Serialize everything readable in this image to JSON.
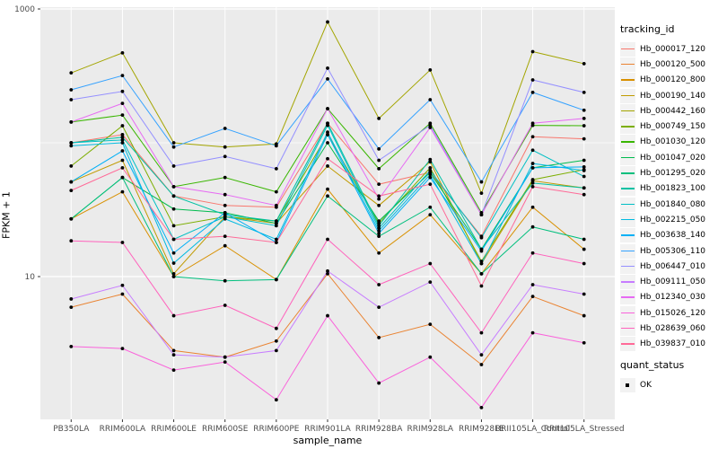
{
  "figure": {
    "x_axis_title": "sample_name",
    "y_axis_title": "FPKM + 1",
    "colors": {
      "panel_bg": "#EBEBEB",
      "grid": "#FFFFFF",
      "tick_text": "#4D4D4D",
      "tick_mark": "#333333",
      "point": "#000000",
      "legend_key_bg": "#F2F2F2"
    },
    "legend_tracking_title": "tracking_id",
    "legend_quant_title": "quant_status",
    "legend_quant_items": [
      "OK"
    ]
  },
  "chart_data": {
    "type": "line",
    "title": "",
    "xlabel": "sample_name",
    "ylabel": "FPKM + 1",
    "yscale": "log10",
    "ylim": [
      0.85,
      1050
    ],
    "y_breaks_labeled": [
      1000,
      10
    ],
    "y_minor_breaks": [
      100
    ],
    "grid": true,
    "legend_position": "right",
    "point_marker": "black dot (quant_status = OK)",
    "x": [
      "PB350LA",
      "RRIM600LA",
      "RRIM600LE",
      "RRIM600SE",
      "RRIM600PE",
      "RRIM901LA",
      "RRIM928BA",
      "RRIM928LA",
      "RRIM928LE",
      "RRII105LA_Control",
      "RRII105LA_Stressed"
    ],
    "series": [
      {
        "name": "Hb_000017_120",
        "color": "#F8766D",
        "values": [
          100,
          115,
          40,
          34,
          33,
          140,
          49,
          60,
          20,
          111,
          107
        ]
      },
      {
        "name": "Hb_000120_500",
        "color": "#EA8331",
        "values": [
          5.9,
          7.4,
          2.8,
          2.5,
          3.3,
          10.5,
          3.5,
          4.4,
          2.2,
          7.1,
          5.1
        ]
      },
      {
        "name": "Hb_000120_800",
        "color": "#D89000",
        "values": [
          27,
          43,
          10,
          17,
          9.5,
          45,
          15,
          29,
          10.5,
          33,
          16
        ]
      },
      {
        "name": "Hb_000190_140",
        "color": "#C09B00",
        "values": [
          51,
          74,
          10.5,
          28,
          25,
          67,
          34,
          72,
          12.5,
          52,
          46
        ]
      },
      {
        "name": "Hb_000442_160",
        "color": "#A3A500",
        "values": [
          333,
          470,
          100,
          93,
          98,
          800,
          152,
          350,
          42,
          480,
          390
        ]
      },
      {
        "name": "Hb_000749_150",
        "color": "#7CAE00",
        "values": [
          67,
          134,
          24,
          28,
          26,
          115,
          25,
          65,
          13,
          53,
          63
        ]
      },
      {
        "name": "Hb_001030_120",
        "color": "#39B600",
        "values": [
          143,
          161,
          47,
          55,
          43,
          180,
          64,
          140,
          30,
          135,
          134
        ]
      },
      {
        "name": "Hb_001047_020",
        "color": "#00BB4E",
        "values": [
          27,
          55,
          32,
          30,
          25,
          100,
          26,
          60,
          16,
          65,
          74
        ]
      },
      {
        "name": "Hb_001295_020",
        "color": "#00BF7D",
        "values": [
          27,
          55,
          10,
          9.3,
          9.5,
          40,
          20,
          33,
          10.5,
          23.5,
          19
        ]
      },
      {
        "name": "Hb_001823_100",
        "color": "#00C1A3",
        "values": [
          100,
          110,
          40,
          29,
          26,
          140,
          24,
          75,
          16,
          50,
          46
        ]
      },
      {
        "name": "Hb_001840_080",
        "color": "#00BFC4",
        "values": [
          100,
          105,
          19,
          28,
          24,
          135,
          23,
          62,
          19.5,
          88,
          56
        ]
      },
      {
        "name": "Hb_002215_050",
        "color": "#00BAE0",
        "values": [
          95,
          100,
          12.6,
          27,
          19,
          120,
          22,
          58,
          12.5,
          70,
          62
        ]
      },
      {
        "name": "Hb_003638_140",
        "color": "#00B0F6",
        "values": [
          51,
          87,
          15,
          30,
          18,
          115,
          21,
          55,
          15.5,
          65,
          66
        ]
      },
      {
        "name": "Hb_005306_110",
        "color": "#35A2FF",
        "values": [
          249,
          318,
          93,
          128,
          95,
          300,
          90,
          210,
          51,
          238,
          175
        ]
      },
      {
        "name": "Hb_006447_010",
        "color": "#9590FF",
        "values": [
          210,
          242,
          67,
          79,
          64,
          361,
          74,
          135,
          29,
          295,
          238
        ]
      },
      {
        "name": "Hb_009111_050",
        "color": "#C77CFF",
        "values": [
          6.8,
          8.6,
          2.6,
          2.5,
          2.8,
          11,
          5.9,
          9.1,
          2.6,
          8.7,
          7.4
        ]
      },
      {
        "name": "Hb_012340_030",
        "color": "#E76BF3",
        "values": [
          143,
          197,
          47,
          41,
          34,
          180,
          38,
          130,
          29,
          140,
          152
        ]
      },
      {
        "name": "Hb_015026_120",
        "color": "#FA62DB",
        "values": [
          3.0,
          2.9,
          2.0,
          2.3,
          1.2,
          5.1,
          1.6,
          2.5,
          1.05,
          3.8,
          3.2
        ]
      },
      {
        "name": "Hb_028639_060",
        "color": "#FF62BC",
        "values": [
          18.5,
          18,
          5.1,
          6.1,
          4.1,
          19,
          8.7,
          12.5,
          3.8,
          15,
          12.5
        ]
      },
      {
        "name": "Hb_039837_010",
        "color": "#FF6A98",
        "values": [
          44,
          65,
          19,
          20,
          18,
          76,
          40,
          49,
          8.5,
          47,
          41
        ]
      }
    ]
  }
}
